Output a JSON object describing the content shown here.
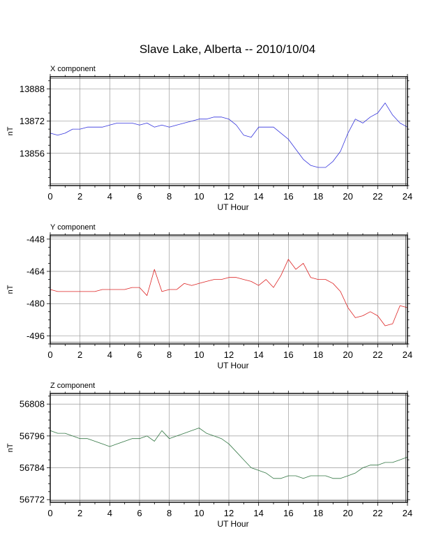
{
  "title": "Slave Lake, Alberta -- 2010/10/04",
  "chart_data": [
    {
      "type": "line",
      "title": "X component",
      "xlabel": "UT Hour",
      "ylabel": "nT",
      "xlim": [
        0,
        24
      ],
      "ylim": [
        13840,
        13894
      ],
      "xticks": [
        0,
        2,
        4,
        6,
        8,
        10,
        12,
        14,
        16,
        18,
        20,
        22,
        24
      ],
      "yticks": [
        13856,
        13872,
        13888
      ],
      "grid": true,
      "color": "#3333dd",
      "series": [
        {
          "x": [
            0,
            0.5,
            1,
            1.5,
            2,
            2.5,
            3,
            3.5,
            4,
            4.5,
            5,
            5.5,
            6,
            6.5,
            7,
            7.5,
            8,
            8.5,
            9,
            9.5,
            10,
            10.5,
            11,
            11.5,
            12,
            12.5,
            13,
            13.5,
            14,
            14.5,
            15,
            15.5,
            16,
            16.5,
            17,
            17.5,
            18,
            18.5,
            19,
            19.5,
            20,
            20.5,
            21,
            21.5,
            22,
            22.5,
            23,
            23.5,
            24
          ],
          "y": [
            13866,
            13865,
            13866,
            13868,
            13868,
            13869,
            13869,
            13869,
            13870,
            13871,
            13871,
            13871,
            13870,
            13871,
            13869,
            13870,
            13869,
            13870,
            13871,
            13872,
            13873,
            13873,
            13874,
            13874,
            13873,
            13870,
            13865,
            13864,
            13869,
            13869,
            13869,
            13866,
            13863,
            13858,
            13853,
            13850,
            13849,
            13849,
            13852,
            13857,
            13866,
            13873,
            13871,
            13874,
            13876,
            13881,
            13875,
            13871,
            13869
          ]
        }
      ]
    },
    {
      "type": "line",
      "title": "Y component",
      "xlabel": "UT Hour",
      "ylabel": "nT",
      "xlim": [
        0,
        24
      ],
      "ylim": [
        -500,
        -446
      ],
      "xticks": [
        0,
        2,
        4,
        6,
        8,
        10,
        12,
        14,
        16,
        18,
        20,
        22,
        24
      ],
      "yticks": [
        -448,
        -464,
        -480,
        -496
      ],
      "grid": true,
      "color": "#dd2222",
      "series": [
        {
          "x": [
            0,
            0.5,
            1,
            1.5,
            2,
            2.5,
            3,
            3.5,
            4,
            4.5,
            5,
            5.5,
            6,
            6.5,
            7,
            7.5,
            8,
            8.5,
            9,
            9.5,
            10,
            10.5,
            11,
            11.5,
            12,
            12.5,
            13,
            13.5,
            14,
            14.5,
            15,
            15.5,
            16,
            16.5,
            17,
            17.5,
            18,
            18.5,
            19,
            19.5,
            20,
            20.5,
            21,
            21.5,
            22,
            22.5,
            23,
            23.5,
            24
          ],
          "y": [
            -473,
            -474,
            -474,
            -474,
            -474,
            -474,
            -474,
            -473,
            -473,
            -473,
            -473,
            -472,
            -472,
            -476,
            -463,
            -474,
            -473,
            -473,
            -470,
            -471,
            -470,
            -469,
            -468,
            -468,
            -467,
            -467,
            -468,
            -469,
            -471,
            -468,
            -472,
            -466,
            -458,
            -463,
            -460,
            -467,
            -468,
            -468,
            -470,
            -474,
            -482,
            -487,
            -486,
            -484,
            -486,
            -491,
            -490,
            -481,
            -482
          ]
        }
      ]
    },
    {
      "type": "line",
      "title": "Z component",
      "xlabel": "UT Hour",
      "ylabel": "nT",
      "xlim": [
        0,
        24
      ],
      "ylim": [
        56771,
        56812
      ],
      "xticks": [
        0,
        2,
        4,
        6,
        8,
        10,
        12,
        14,
        16,
        18,
        20,
        22,
        24
      ],
      "yticks": [
        56772,
        56784,
        56796,
        56808
      ],
      "grid": true,
      "color": "#337744",
      "series": [
        {
          "x": [
            0,
            0.5,
            1,
            1.5,
            2,
            2.5,
            3,
            3.5,
            4,
            4.5,
            5,
            5.5,
            6,
            6.5,
            7,
            7.5,
            8,
            8.5,
            9,
            9.5,
            10,
            10.5,
            11,
            11.5,
            12,
            12.5,
            13,
            13.5,
            14,
            14.5,
            15,
            15.5,
            16,
            16.5,
            17,
            17.5,
            18,
            18.5,
            19,
            19.5,
            20,
            20.5,
            21,
            21.5,
            22,
            22.5,
            23,
            23.5,
            24
          ],
          "y": [
            56798,
            56797,
            56797,
            56796,
            56795,
            56795,
            56794,
            56793,
            56792,
            56793,
            56794,
            56795,
            56795,
            56796,
            56794,
            56798,
            56795,
            56796,
            56797,
            56798,
            56799,
            56797,
            56796,
            56795,
            56793,
            56790,
            56787,
            56784,
            56783,
            56782,
            56780,
            56780,
            56781,
            56781,
            56780,
            56781,
            56781,
            56781,
            56780,
            56780,
            56781,
            56782,
            56784,
            56785,
            56785,
            56786,
            56786,
            56787,
            56788
          ]
        }
      ]
    }
  ]
}
